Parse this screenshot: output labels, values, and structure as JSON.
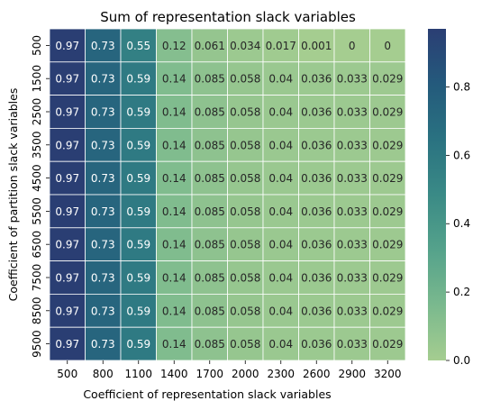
{
  "chart_data": {
    "type": "heatmap",
    "title": "Sum of representation slack variables",
    "xlabel": "Coefficient of representation slack variables",
    "ylabel": "Coefficient of partition slack variables",
    "x_categories": [
      "500",
      "800",
      "1100",
      "1400",
      "1700",
      "2000",
      "2300",
      "2600",
      "2900",
      "3200"
    ],
    "y_categories": [
      "500",
      "1500",
      "2500",
      "3500",
      "4500",
      "5500",
      "6500",
      "7500",
      "8500",
      "9500"
    ],
    "values": [
      [
        0.97,
        0.73,
        0.55,
        0.12,
        0.061,
        0.034,
        0.017,
        0.001,
        0,
        0
      ],
      [
        0.97,
        0.73,
        0.59,
        0.14,
        0.085,
        0.058,
        0.04,
        0.036,
        0.033,
        0.029
      ],
      [
        0.97,
        0.73,
        0.59,
        0.14,
        0.085,
        0.058,
        0.04,
        0.036,
        0.033,
        0.029
      ],
      [
        0.97,
        0.73,
        0.59,
        0.14,
        0.085,
        0.058,
        0.04,
        0.036,
        0.033,
        0.029
      ],
      [
        0.97,
        0.73,
        0.59,
        0.14,
        0.085,
        0.058,
        0.04,
        0.036,
        0.033,
        0.029
      ],
      [
        0.97,
        0.73,
        0.59,
        0.14,
        0.085,
        0.058,
        0.04,
        0.036,
        0.033,
        0.029
      ],
      [
        0.97,
        0.73,
        0.59,
        0.14,
        0.085,
        0.058,
        0.04,
        0.036,
        0.033,
        0.029
      ],
      [
        0.97,
        0.73,
        0.59,
        0.14,
        0.085,
        0.058,
        0.04,
        0.036,
        0.033,
        0.029
      ],
      [
        0.97,
        0.73,
        0.59,
        0.14,
        0.085,
        0.058,
        0.04,
        0.036,
        0.033,
        0.029
      ],
      [
        0.97,
        0.73,
        0.59,
        0.14,
        0.085,
        0.058,
        0.04,
        0.036,
        0.033,
        0.029
      ]
    ],
    "colormap": "crest",
    "colorbar": {
      "range": [
        0,
        0.97
      ],
      "ticks": [
        0.0,
        0.2,
        0.4,
        0.6,
        0.8
      ],
      "tick_labels": [
        "0.0",
        "0.2",
        "0.4",
        "0.6",
        "0.8"
      ]
    },
    "colormap_stops": [
      "#a5cd90",
      "#7ab98e",
      "#55a28b",
      "#3a8a86",
      "#2a7281",
      "#245a7c",
      "#2a3f74",
      "#2c1e3d"
    ],
    "cell_border_color": "#ffffff",
    "annotation_dark_text_color": "#262626",
    "annotation_light_text_color": "#ffffff"
  }
}
